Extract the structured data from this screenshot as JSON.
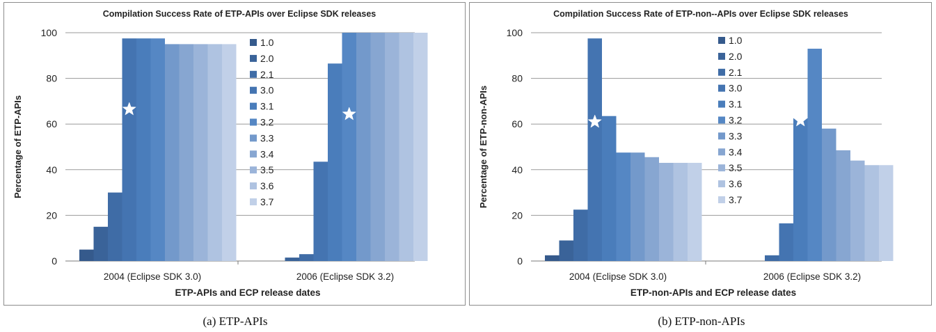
{
  "chart_data": [
    {
      "type": "bar",
      "title": "Compilation Success Rate of ETP-APIs over Eclipse SDK releases",
      "xlabel": "ETP-APIs and ECP release dates",
      "ylabel": "Percentage of ETP-APIs",
      "categories": [
        "2004 (Eclipse SDK 3.0)",
        "2006 (Eclipse SDK 3.2)"
      ],
      "ylim": [
        0,
        100
      ],
      "yticks": [
        "0",
        "20",
        "40",
        "60",
        "80",
        "100"
      ],
      "grid": true,
      "legend_position": "right",
      "series": [
        {
          "name": "1.0",
          "color": "#355a8c",
          "values": [
            5,
            0
          ]
        },
        {
          "name": "2.0",
          "color": "#3a6399",
          "values": [
            15,
            1.5
          ]
        },
        {
          "name": "2.1",
          "color": "#3f6ca6",
          "values": [
            30,
            3
          ]
        },
        {
          "name": "3.0",
          "color": "#4474b1",
          "values": [
            97.5,
            43.5
          ]
        },
        {
          "name": "3.1",
          "color": "#4a7dbb",
          "values": [
            97.5,
            86.5
          ]
        },
        {
          "name": "3.2",
          "color": "#5587c4",
          "values": [
            97.5,
            100
          ]
        },
        {
          "name": "3.3",
          "color": "#7399cb",
          "values": [
            95,
            100
          ]
        },
        {
          "name": "3.4",
          "color": "#87a6d1",
          "values": [
            95,
            100
          ]
        },
        {
          "name": "3.5",
          "color": "#9bb4d9",
          "values": [
            95,
            100
          ]
        },
        {
          "name": "3.6",
          "color": "#afc3e1",
          "values": [
            95,
            100
          ]
        },
        {
          "name": "3.7",
          "color": "#c1d0e8",
          "values": [
            95,
            100
          ]
        }
      ],
      "star_markers": [
        {
          "category": "2004 (Eclipse SDK 3.0)",
          "series": "3.0"
        },
        {
          "category": "2006 (Eclipse SDK 3.2)",
          "series": "3.2"
        }
      ]
    },
    {
      "type": "bar",
      "title": "Compilation Success Rate of ETP-non--APIs over Eclipse SDK releases",
      "xlabel": "ETP-non-APIs and ECP release dates",
      "ylabel": "Percentage of ETP-non-APIs",
      "categories": [
        "2004 (Eclipse SDK 3.0)",
        "2006 (Eclipse SDK 3.2)"
      ],
      "ylim": [
        0,
        100
      ],
      "yticks": [
        "0",
        "20",
        "40",
        "60",
        "80",
        "100"
      ],
      "grid": true,
      "legend_position": "right",
      "series": [
        {
          "name": "1.0",
          "color": "#355a8c",
          "values": [
            2.5,
            0
          ]
        },
        {
          "name": "2.0",
          "color": "#3a6399",
          "values": [
            9,
            0
          ]
        },
        {
          "name": "2.1",
          "color": "#3f6ca6",
          "values": [
            22.5,
            2.5
          ]
        },
        {
          "name": "3.0",
          "color": "#4474b1",
          "values": [
            97.5,
            16.5
          ]
        },
        {
          "name": "3.1",
          "color": "#4a7dbb",
          "values": [
            63.5,
            62.5
          ]
        },
        {
          "name": "3.2",
          "color": "#5587c4",
          "values": [
            47.5,
            93
          ]
        },
        {
          "name": "3.3",
          "color": "#7399cb",
          "values": [
            47.5,
            58
          ]
        },
        {
          "name": "3.4",
          "color": "#87a6d1",
          "values": [
            45.5,
            48.5
          ]
        },
        {
          "name": "3.5",
          "color": "#9bb4d9",
          "values": [
            43,
            44
          ]
        },
        {
          "name": "3.6",
          "color": "#afc3e1",
          "values": [
            43,
            42
          ]
        },
        {
          "name": "3.7",
          "color": "#c1d0e8",
          "values": [
            43,
            42
          ]
        }
      ],
      "star_markers": [
        {
          "category": "2004 (Eclipse SDK 3.0)",
          "series": "3.0"
        },
        {
          "category": "2006 (Eclipse SDK 3.2)",
          "series": "3.1"
        }
      ]
    }
  ],
  "captions": {
    "a": "(a) ETP-APIs",
    "b": "(b) ETP-non-APIs"
  }
}
